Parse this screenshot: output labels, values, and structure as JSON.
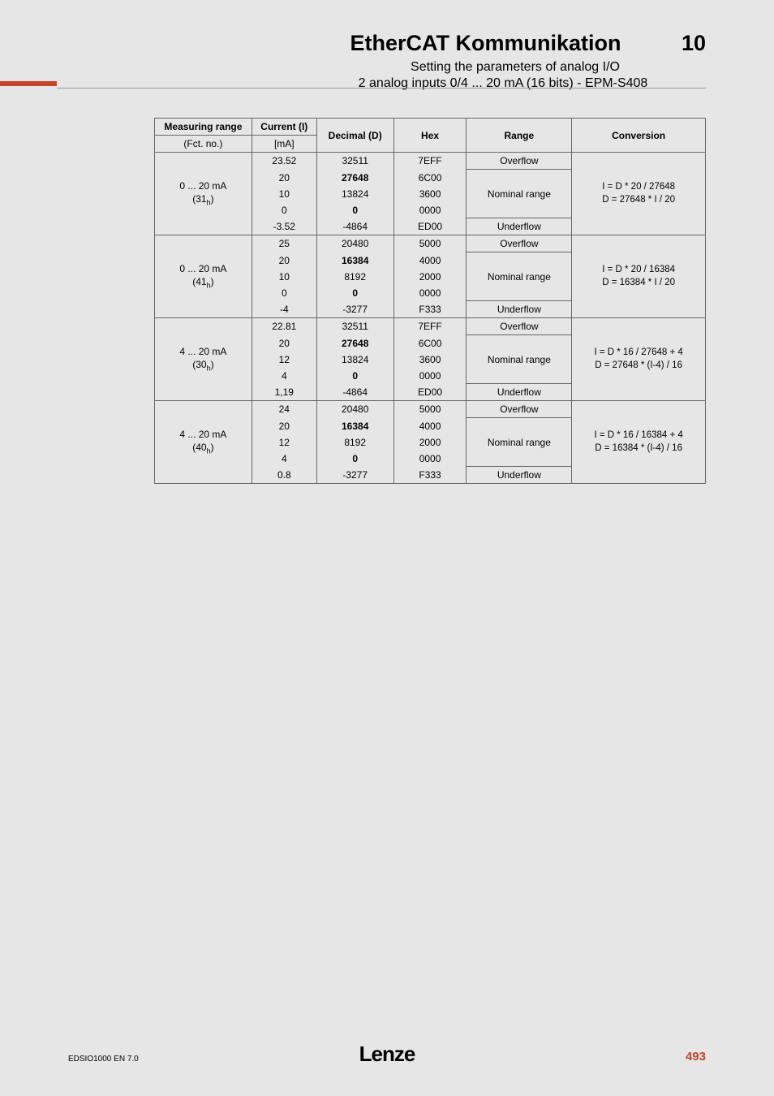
{
  "header": {
    "title": "EtherCAT Kommunikation",
    "chapter": "10",
    "sub1": "Setting the parameters of analog I/O",
    "sub2": "2 analog inputs 0/4 ... 20 mA (16 bits) - EPM-S408"
  },
  "table": {
    "headers": {
      "measuring_range": "Measuring range",
      "fct_no": "(Fct. no.)",
      "current": "Current (I)",
      "current_unit": "[mA]",
      "decimal": "Decimal (D)",
      "hex": "Hex",
      "range": "Range",
      "conversion": "Conversion"
    },
    "groups": [
      {
        "range_label": "0 ... 20 mA",
        "fct_hex": "(31",
        "fct_sub": "h",
        "fct_close": ")",
        "conv_line1": "I = D * 20 / 27648",
        "conv_line2": "D = 27648 * I / 20",
        "rows": [
          {
            "cur": "23.52",
            "dec": "32511",
            "hex": "7EFF",
            "rng": "Overflow",
            "rspan": 1
          },
          {
            "cur": "20",
            "dec": "27648",
            "hex": "6C00",
            "rng": "Nominal range",
            "rspan": 3,
            "bold": true
          },
          {
            "cur": "10",
            "dec": "13824",
            "hex": "3600"
          },
          {
            "cur": "0",
            "dec": "0",
            "hex": "0000",
            "bold": true
          },
          {
            "cur": "-3.52",
            "dec": "-4864",
            "hex": "ED00",
            "rng": "Underflow",
            "rspan": 1
          }
        ]
      },
      {
        "range_label": "0 ... 20 mA",
        "fct_hex": "(41",
        "fct_sub": "h",
        "fct_close": ")",
        "conv_line1": "I = D * 20 / 16384",
        "conv_line2": "D = 16384 * I / 20",
        "rows": [
          {
            "cur": "25",
            "dec": "20480",
            "hex": "5000",
            "rng": "Overflow",
            "rspan": 1
          },
          {
            "cur": "20",
            "dec": "16384",
            "hex": "4000",
            "rng": "Nominal range",
            "rspan": 3,
            "bold": true
          },
          {
            "cur": "10",
            "dec": "8192",
            "hex": "2000"
          },
          {
            "cur": "0",
            "dec": "0",
            "hex": "0000",
            "bold": true
          },
          {
            "cur": "-4",
            "dec": "-3277",
            "hex": "F333",
            "rng": "Underflow",
            "rspan": 1
          }
        ]
      },
      {
        "range_label": "4 ... 20 mA",
        "fct_hex": "(30",
        "fct_sub": "h",
        "fct_close": ")",
        "conv_line1": "I = D * 16 / 27648 + 4",
        "conv_line2": "D = 27648 * (I-4) / 16",
        "rows": [
          {
            "cur": "22.81",
            "dec": "32511",
            "hex": "7EFF",
            "rng": "Overflow",
            "rspan": 1
          },
          {
            "cur": "20",
            "dec": "27648",
            "hex": "6C00",
            "rng": "Nominal range",
            "rspan": 3,
            "bold": true
          },
          {
            "cur": "12",
            "dec": "13824",
            "hex": "3600"
          },
          {
            "cur": "4",
            "dec": "0",
            "hex": "0000",
            "bold": true
          },
          {
            "cur": "1,19",
            "dec": "-4864",
            "hex": "ED00",
            "rng": "Underflow",
            "rspan": 1
          }
        ]
      },
      {
        "range_label": "4 ... 20 mA",
        "fct_hex": "(40",
        "fct_sub": "h",
        "fct_close": ")",
        "conv_line1": "I = D * 16 / 16384 + 4",
        "conv_line2": "D = 16384 * (I-4) / 16",
        "rows": [
          {
            "cur": "24",
            "dec": "20480",
            "hex": "5000",
            "rng": "Overflow",
            "rspan": 1
          },
          {
            "cur": "20",
            "dec": "16384",
            "hex": "4000",
            "rng": "Nominal range",
            "rspan": 3,
            "bold": true
          },
          {
            "cur": "12",
            "dec": "8192",
            "hex": "2000"
          },
          {
            "cur": "4",
            "dec": "0",
            "hex": "0000",
            "bold": true
          },
          {
            "cur": "0.8",
            "dec": "-3277",
            "hex": "F333",
            "rng": "Underflow",
            "rspan": 1
          }
        ]
      }
    ]
  },
  "footer": {
    "left": "EDSIO1000   EN   7.0",
    "logo": "Lenze",
    "page": "493"
  }
}
